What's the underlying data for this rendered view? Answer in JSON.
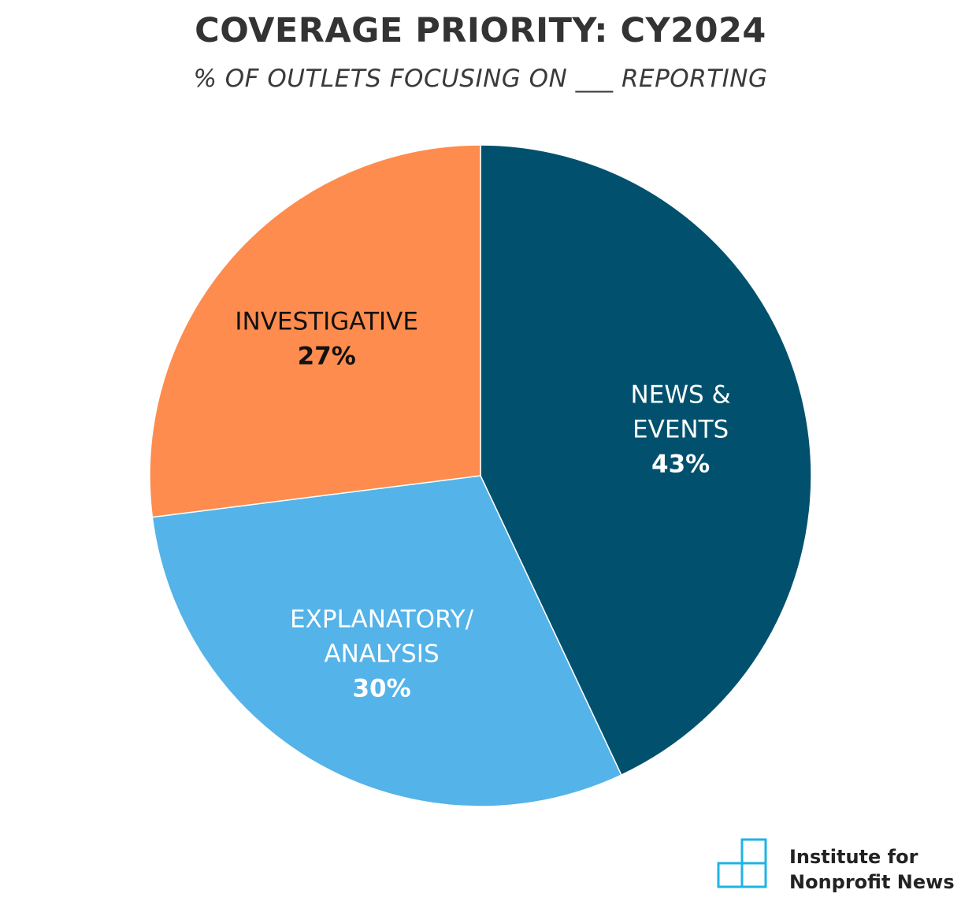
{
  "chart_data": {
    "type": "pie",
    "title": "COVERAGE PRIORITY: CY2024",
    "subtitle": "% OF OUTLETS FOCUSING ON ___ REPORTING",
    "slices": [
      {
        "label_lines": [
          "NEWS &",
          "EVENTS"
        ],
        "value": 43,
        "value_label": "43%",
        "color": "#01516e",
        "text_color": "#ffffff"
      },
      {
        "label_lines": [
          "EXPLANATORY/",
          "ANALYSIS"
        ],
        "value": 30,
        "value_label": "30%",
        "color": "#54b3e8",
        "text_color": "#ffffff"
      },
      {
        "label_lines": [
          "INVESTIGATIVE"
        ],
        "value": 27,
        "value_label": "27%",
        "color": "#fe8c4e",
        "text_color": "#111111"
      }
    ]
  },
  "branding": {
    "logo_icon": "stacked-squares-icon",
    "logo_color": "#1fb3e6",
    "org_name_line1": "Institute for",
    "org_name_line2": "Nonprofit News"
  }
}
